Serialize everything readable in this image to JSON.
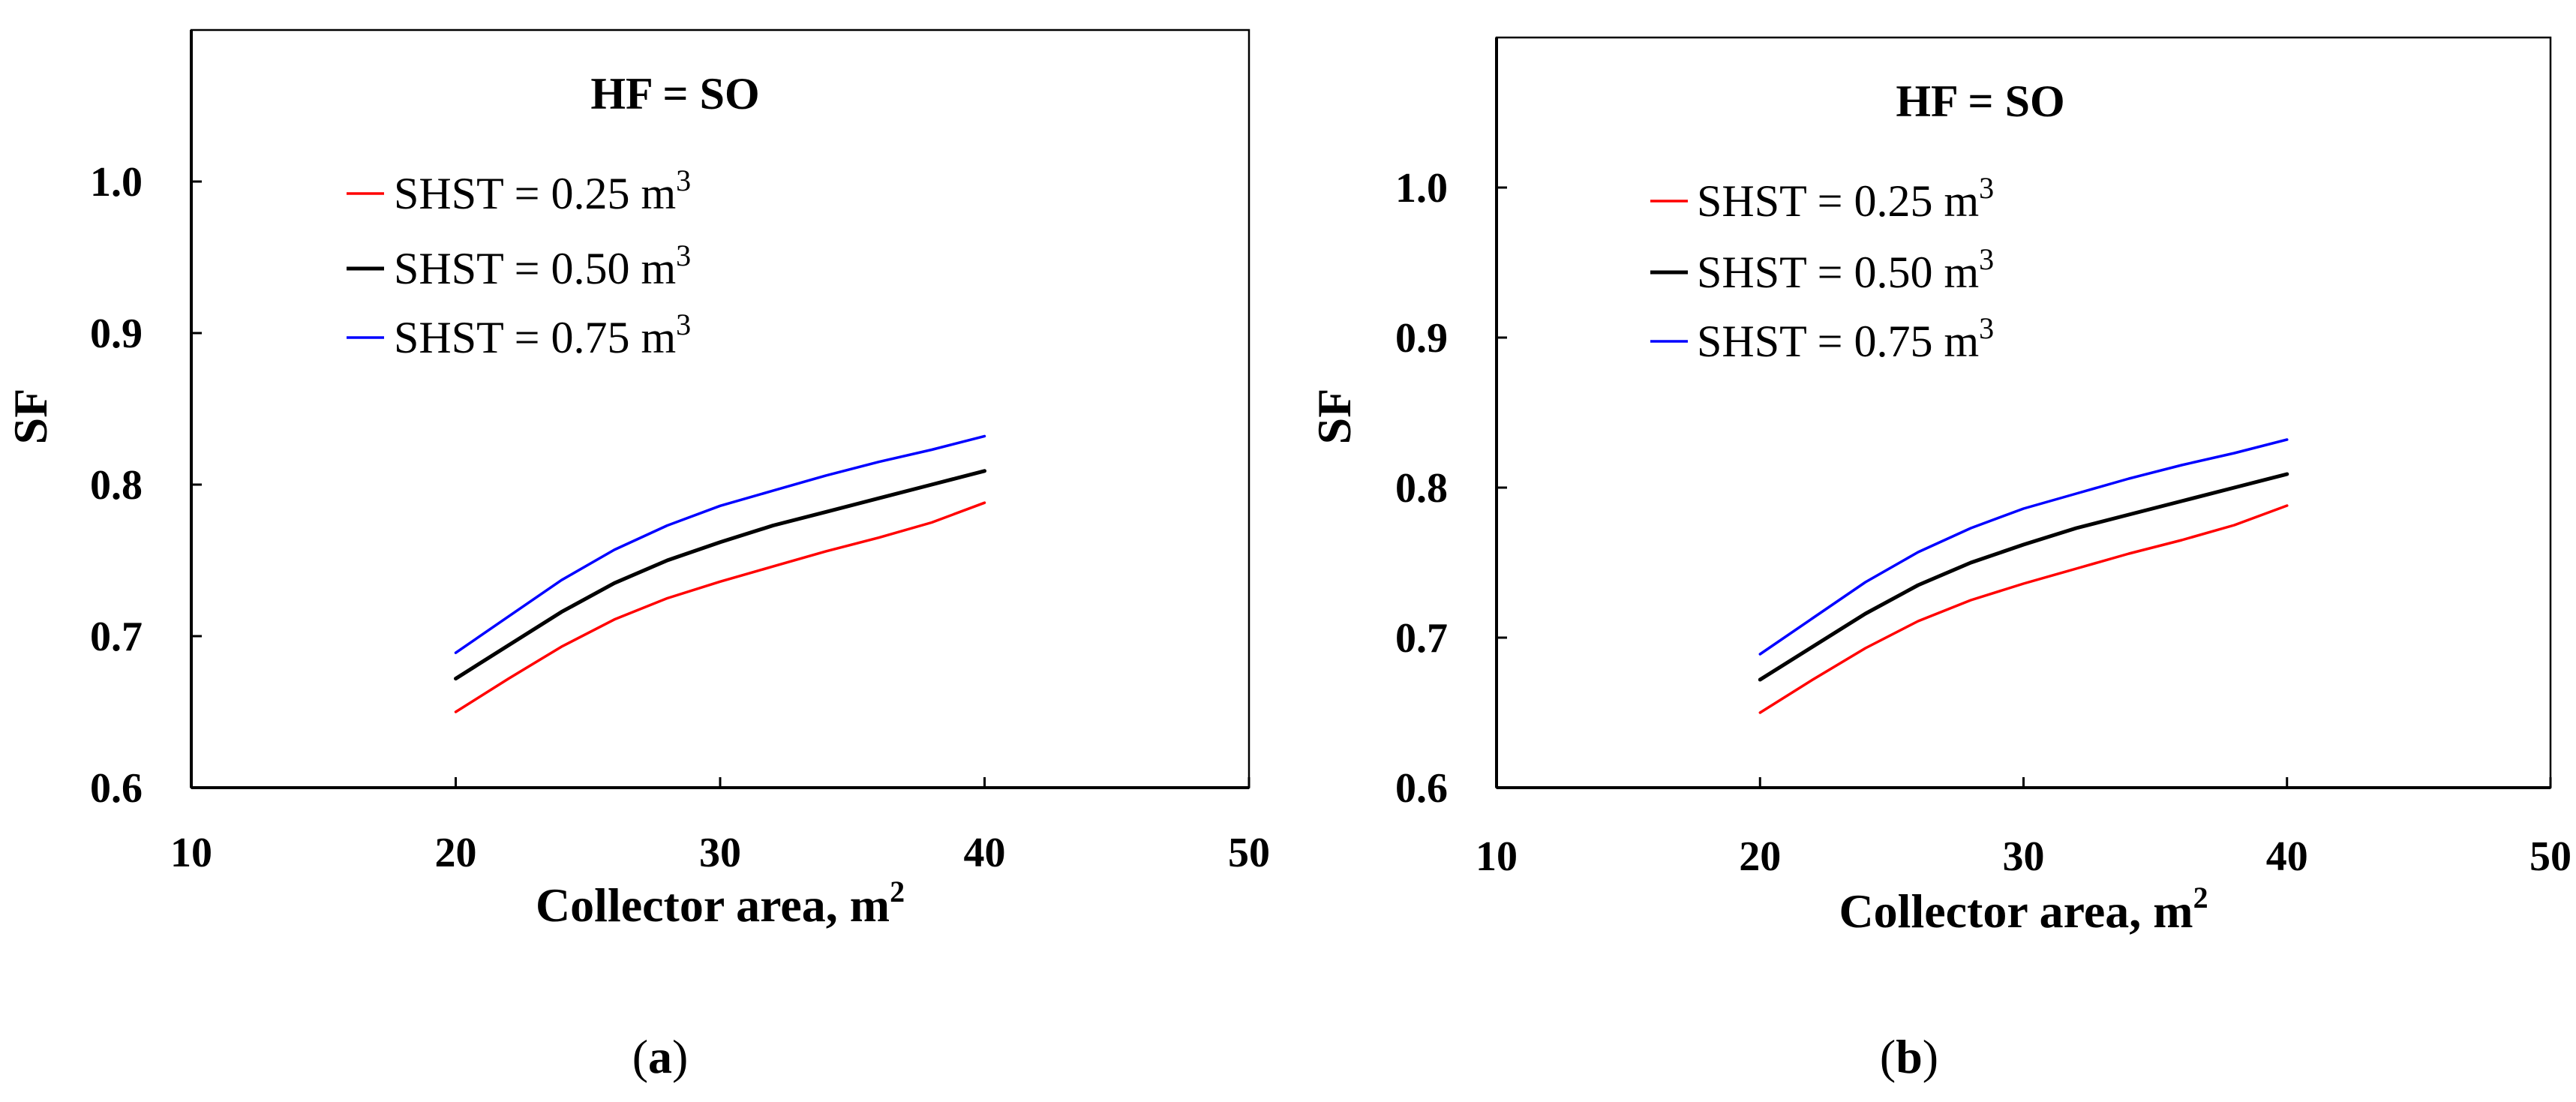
{
  "colors": {
    "series_red": "#ff0000",
    "series_black": "#000000",
    "series_blue": "#0000ff",
    "axis": "#000000",
    "frame": "#000000"
  },
  "chart_data": [
    {
      "type": "line",
      "panel": "a",
      "caption_letter": "a",
      "annotation": "HF = SO",
      "xlabel": "Collector area, m",
      "xlabel_sup": "2",
      "ylabel": "SF",
      "xlim": [
        10,
        50
      ],
      "ylim": [
        0.6,
        1.1
      ],
      "xticks": [
        10,
        20,
        30,
        40,
        50
      ],
      "xtick_labels": [
        "10",
        "20",
        "30",
        "40",
        "50"
      ],
      "yticks": [
        0.6,
        0.7,
        0.8,
        0.9,
        1.0
      ],
      "ytick_labels": [
        "0.6",
        "0.7",
        "0.8",
        "0.9",
        "1.0"
      ],
      "grid": false,
      "legend_position": "top-left",
      "x": [
        20,
        22,
        24,
        26,
        28,
        30,
        32,
        34,
        36,
        38,
        40
      ],
      "series": [
        {
          "name": "SHST = 0.25 m",
          "sup": "3",
          "color": "#ff0000",
          "values": [
            0.65,
            0.672,
            0.693,
            0.711,
            0.725,
            0.736,
            0.746,
            0.756,
            0.765,
            0.775,
            0.788
          ]
        },
        {
          "name": "SHST = 0.50 m",
          "sup": "3",
          "color": "#000000",
          "values": [
            0.672,
            0.694,
            0.716,
            0.735,
            0.75,
            0.762,
            0.773,
            0.782,
            0.791,
            0.8,
            0.809
          ]
        },
        {
          "name": "SHST = 0.75 m",
          "sup": "3",
          "color": "#0000ff",
          "values": [
            0.689,
            0.713,
            0.737,
            0.757,
            0.773,
            0.786,
            0.796,
            0.806,
            0.815,
            0.823,
            0.832
          ]
        }
      ]
    },
    {
      "type": "line",
      "panel": "b",
      "caption_letter": "b",
      "annotation": "HF = SO",
      "xlabel": "Collector area, m",
      "xlabel_sup": "2",
      "ylabel": "SF",
      "xlim": [
        10,
        50
      ],
      "ylim": [
        0.6,
        1.1
      ],
      "xticks": [
        10,
        20,
        30,
        40,
        50
      ],
      "xtick_labels": [
        "10",
        "20",
        "30",
        "40",
        "50"
      ],
      "yticks": [
        0.6,
        0.7,
        0.8,
        0.9,
        1.0
      ],
      "ytick_labels": [
        "0.6",
        "0.7",
        "0.8",
        "0.9",
        "1.0"
      ],
      "grid": false,
      "legend_position": "top-left",
      "x": [
        20,
        22,
        24,
        26,
        28,
        30,
        32,
        34,
        36,
        38,
        40
      ],
      "series": [
        {
          "name": "SHST = 0.25 m",
          "sup": "3",
          "color": "#ff0000",
          "values": [
            0.65,
            0.672,
            0.693,
            0.711,
            0.725,
            0.736,
            0.746,
            0.756,
            0.765,
            0.775,
            0.788
          ]
        },
        {
          "name": "SHST = 0.50 m",
          "sup": "3",
          "color": "#000000",
          "values": [
            0.672,
            0.694,
            0.716,
            0.735,
            0.75,
            0.762,
            0.773,
            0.782,
            0.791,
            0.8,
            0.809
          ]
        },
        {
          "name": "SHST = 0.75 m",
          "sup": "3",
          "color": "#0000ff",
          "values": [
            0.689,
            0.713,
            0.737,
            0.757,
            0.773,
            0.786,
            0.796,
            0.806,
            0.815,
            0.823,
            0.832
          ]
        }
      ]
    }
  ]
}
